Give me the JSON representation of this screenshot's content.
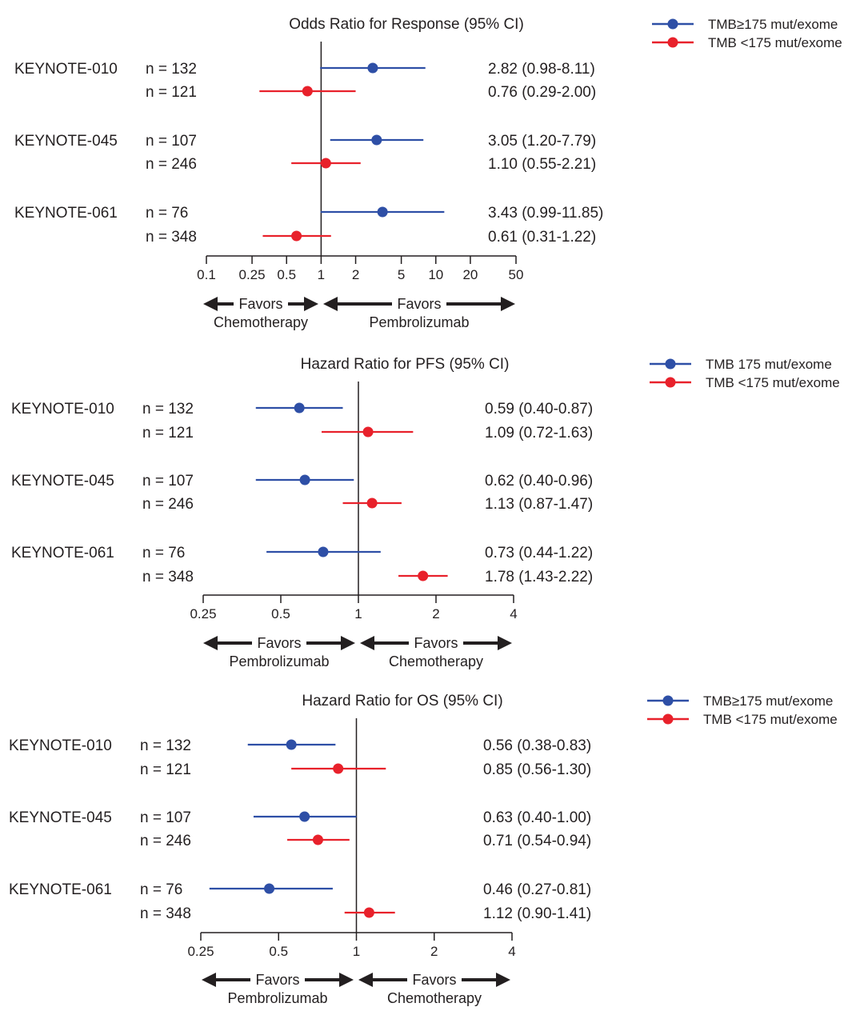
{
  "colors": {
    "high": "#2e4fa6",
    "low": "#e8212b",
    "axis": "#231f20"
  },
  "chart_data": [
    {
      "type": "forest",
      "title": "Odds Ratio for Response (95% CI)",
      "scale": "log",
      "xlim": [
        0.1,
        50
      ],
      "ticks": [
        0.1,
        0.25,
        0.5,
        1,
        2,
        5,
        10,
        20,
        50
      ],
      "tick_labels": [
        "0.1",
        "0.25",
        "0.5",
        "1",
        "2",
        "5",
        "10",
        "20",
        "50"
      ],
      "reference": 1,
      "legend": [
        "TMB≥175 mut/exome",
        "TMB <175 mut/exome"
      ],
      "favors": {
        "left_word": "Favors",
        "left_group": "Chemotherapy",
        "right_word": "Favors",
        "right_group": "Pembrolizumab"
      },
      "groups": [
        {
          "study": "KEYNOTE-010",
          "rows": [
            {
              "series": "high",
              "n": "n = 132",
              "est": 2.82,
              "lo": 0.98,
              "hi": 8.11,
              "text": "2.82 (0.98-8.11)"
            },
            {
              "series": "low",
              "n": "n = 121",
              "est": 0.76,
              "lo": 0.29,
              "hi": 2.0,
              "text": "0.76 (0.29-2.00)"
            }
          ]
        },
        {
          "study": "KEYNOTE-045",
          "rows": [
            {
              "series": "high",
              "n": "n = 107",
              "est": 3.05,
              "lo": 1.2,
              "hi": 7.79,
              "text": "3.05 (1.20-7.79)"
            },
            {
              "series": "low",
              "n": "n = 246",
              "est": 1.1,
              "lo": 0.55,
              "hi": 2.21,
              "text": "1.10 (0.55-2.21)"
            }
          ]
        },
        {
          "study": "KEYNOTE-061",
          "rows": [
            {
              "series": "high",
              "n": "n = 76",
              "est": 3.43,
              "lo": 0.99,
              "hi": 11.85,
              "text": "3.43 (0.99-11.85)"
            },
            {
              "series": "low",
              "n": "n = 348",
              "est": 0.61,
              "lo": 0.31,
              "hi": 1.22,
              "text": "0.61 (0.31-1.22)"
            }
          ]
        }
      ]
    },
    {
      "type": "forest",
      "title": "Hazard Ratio for PFS (95% CI)",
      "scale": "log",
      "xlim": [
        0.25,
        4
      ],
      "ticks": [
        0.25,
        0.5,
        1,
        2,
        4
      ],
      "tick_labels": [
        "0.25",
        "0.5",
        "1",
        "2",
        "4"
      ],
      "reference": 1,
      "legend": [
        "TMB   175 mut/exome",
        "TMB <175 mut/exome"
      ],
      "favors": {
        "left_word": "Favors",
        "left_group": "Pembrolizumab",
        "right_word": "Favors",
        "right_group": "Chemotherapy"
      },
      "groups": [
        {
          "study": "KEYNOTE-010",
          "rows": [
            {
              "series": "high",
              "n": "n = 132",
              "est": 0.59,
              "lo": 0.4,
              "hi": 0.87,
              "text": "0.59 (0.40-0.87)"
            },
            {
              "series": "low",
              "n": "n = 121",
              "est": 1.09,
              "lo": 0.72,
              "hi": 1.63,
              "text": "1.09 (0.72-1.63)"
            }
          ]
        },
        {
          "study": "KEYNOTE-045",
          "rows": [
            {
              "series": "high",
              "n": "n = 107",
              "est": 0.62,
              "lo": 0.4,
              "hi": 0.96,
              "text": "0.62 (0.40-0.96)"
            },
            {
              "series": "low",
              "n": "n = 246",
              "est": 1.13,
              "lo": 0.87,
              "hi": 1.47,
              "text": "1.13 (0.87-1.47)"
            }
          ]
        },
        {
          "study": "KEYNOTE-061",
          "rows": [
            {
              "series": "high",
              "n": "n = 76",
              "est": 0.73,
              "lo": 0.44,
              "hi": 1.22,
              "text": "0.73 (0.44-1.22)"
            },
            {
              "series": "low",
              "n": "n = 348",
              "est": 1.78,
              "lo": 1.43,
              "hi": 2.22,
              "text": "1.78 (1.43-2.22)"
            }
          ]
        }
      ]
    },
    {
      "type": "forest",
      "title": "Hazard Ratio for OS (95% CI)",
      "scale": "log",
      "xlim": [
        0.25,
        4
      ],
      "ticks": [
        0.25,
        0.5,
        1,
        2,
        4
      ],
      "tick_labels": [
        "0.25",
        "0.5",
        "1",
        "2",
        "4"
      ],
      "reference": 1,
      "legend": [
        "TMB≥175 mut/exome",
        "TMB <175 mut/exome"
      ],
      "favors": {
        "left_word": "Favors",
        "left_group": "Pembrolizumab",
        "right_word": "Favors",
        "right_group": "Chemotherapy"
      },
      "groups": [
        {
          "study": "KEYNOTE-010",
          "rows": [
            {
              "series": "high",
              "n": "n = 132",
              "est": 0.56,
              "lo": 0.38,
              "hi": 0.83,
              "text": "0.56 (0.38-0.83)"
            },
            {
              "series": "low",
              "n": "n = 121",
              "est": 0.85,
              "lo": 0.56,
              "hi": 1.3,
              "text": "0.85 (0.56-1.30)"
            }
          ]
        },
        {
          "study": "KEYNOTE-045",
          "rows": [
            {
              "series": "high",
              "n": "n = 107",
              "est": 0.63,
              "lo": 0.4,
              "hi": 1.0,
              "text": "0.63 (0.40-1.00)"
            },
            {
              "series": "low",
              "n": "n = 246",
              "est": 0.71,
              "lo": 0.54,
              "hi": 0.94,
              "text": "0.71 (0.54-0.94)"
            }
          ]
        },
        {
          "study": "KEYNOTE-061",
          "rows": [
            {
              "series": "high",
              "n": "n = 76",
              "est": 0.46,
              "lo": 0.27,
              "hi": 0.81,
              "text": "0.46 (0.27-0.81)"
            },
            {
              "series": "low",
              "n": "n = 348",
              "est": 1.12,
              "lo": 0.9,
              "hi": 1.41,
              "text": "1.12 (0.90-1.41)"
            }
          ]
        }
      ]
    }
  ]
}
